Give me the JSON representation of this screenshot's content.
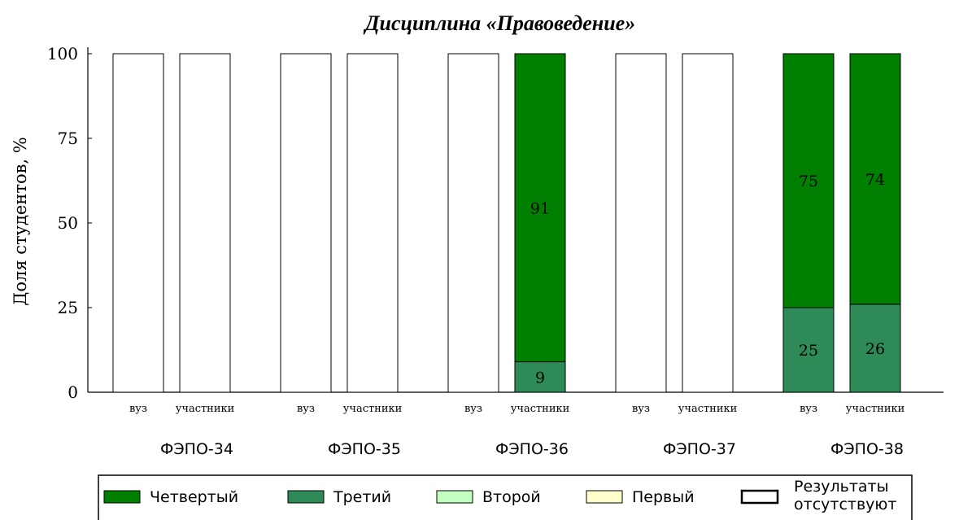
{
  "chart_data": {
    "type": "bar",
    "stacked": true,
    "title": "Дисциплина «Правоведение»",
    "ylabel": "Доля студентов, %",
    "ylim": [
      0,
      100
    ],
    "yticks": [
      "0",
      "25",
      "50",
      "75",
      "100"
    ],
    "groups": [
      {
        "label": "ФЭПО-34",
        "bars": [
          {
            "label": "вуз",
            "no_results": true,
            "values": {
              "Четвертый": 0,
              "Третий": 0,
              "Второй": 0,
              "Первый": 0
            }
          },
          {
            "label": "участники",
            "no_results": true,
            "values": {
              "Четвертый": 0,
              "Третий": 0,
              "Второй": 0,
              "Первый": 0
            }
          }
        ]
      },
      {
        "label": "ФЭПО-35",
        "bars": [
          {
            "label": "вуз",
            "no_results": true,
            "values": {
              "Четвертый": 0,
              "Третий": 0,
              "Второй": 0,
              "Первый": 0
            }
          },
          {
            "label": "участники",
            "no_results": true,
            "values": {
              "Четвертый": 0,
              "Третий": 0,
              "Второй": 0,
              "Первый": 0
            }
          }
        ]
      },
      {
        "label": "ФЭПО-36",
        "bars": [
          {
            "label": "вуз",
            "no_results": true,
            "values": {
              "Четвертый": 0,
              "Третий": 0,
              "Второй": 0,
              "Первый": 0
            }
          },
          {
            "label": "участники",
            "no_results": false,
            "values": {
              "Четвертый": 91,
              "Третий": 9,
              "Второй": 0,
              "Первый": 0
            }
          }
        ]
      },
      {
        "label": "ФЭПО-37",
        "bars": [
          {
            "label": "вуз",
            "no_results": true,
            "values": {
              "Четвертый": 0,
              "Третий": 0,
              "Второй": 0,
              "Первый": 0
            }
          },
          {
            "label": "участники",
            "no_results": true,
            "values": {
              "Четвертый": 0,
              "Третий": 0,
              "Второй": 0,
              "Первый": 0
            }
          }
        ]
      },
      {
        "label": "ФЭПО-38",
        "bars": [
          {
            "label": "вуз",
            "no_results": false,
            "values": {
              "Четвертый": 75,
              "Третий": 25,
              "Второй": 0,
              "Первый": 0
            }
          },
          {
            "label": "участники",
            "no_results": false,
            "values": {
              "Четвертый": 74,
              "Третий": 26,
              "Второй": 0,
              "Первый": 0
            }
          }
        ]
      }
    ],
    "series": [
      {
        "name": "Четвертый",
        "color": "#007f00"
      },
      {
        "name": "Третий",
        "color": "#2e8b57"
      },
      {
        "name": "Второй",
        "color": "#c1ffc1"
      },
      {
        "name": "Первый",
        "color": "#ffffcc"
      }
    ],
    "no_results_label": "Результаты отсутствуют",
    "no_results_label_lines": [
      "Результаты",
      "отсутствуют"
    ],
    "no_results_color": "#ffffff",
    "stack_order_bottom_to_top": [
      "Первый",
      "Второй",
      "Третий",
      "Четвертый"
    ],
    "legend_position": "bottom",
    "grid": false
  }
}
